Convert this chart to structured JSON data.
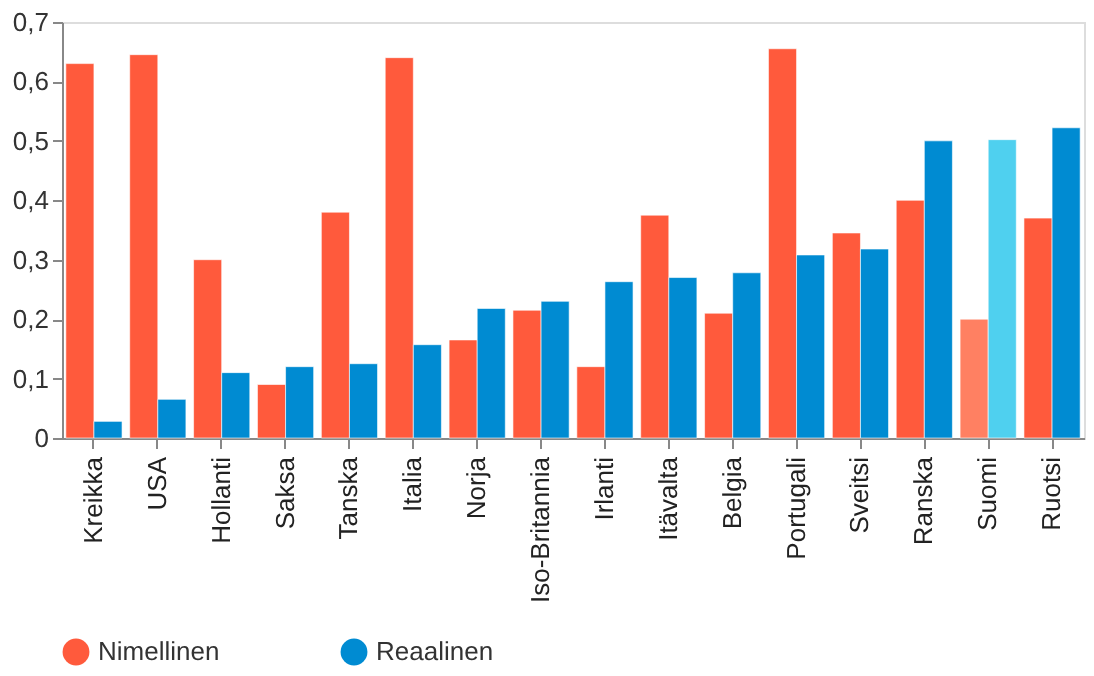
{
  "chart_data": {
    "type": "bar",
    "categories": [
      "Kreikka",
      "USA",
      "Hollanti",
      "Saksa",
      "Tanska",
      "Italia",
      "Norja",
      "Iso-Britannia",
      "Irlanti",
      "Itävalta",
      "Belgia",
      "Portugali",
      "Sveitsi",
      "Ranska",
      "Suomi",
      "Ruotsi"
    ],
    "series": [
      {
        "name": "Nimellinen",
        "color": "#ff5a3c",
        "colors": [
          "#ff5a3c",
          "#ff5a3c",
          "#ff5a3c",
          "#ff5a3c",
          "#ff5a3c",
          "#ff5a3c",
          "#ff5a3c",
          "#ff5a3c",
          "#ff5a3c",
          "#ff5a3c",
          "#ff5a3c",
          "#ff5a3c",
          "#ff5a3c",
          "#ff5a3c",
          "#ff8062",
          "#ff5a3c"
        ],
        "values": [
          0.63,
          0.645,
          0.3,
          0.09,
          0.38,
          0.64,
          0.165,
          0.215,
          0.12,
          0.375,
          0.21,
          0.655,
          0.345,
          0.4,
          0.2,
          0.37
        ]
      },
      {
        "name": "Reaalinen",
        "color": "#008bd2",
        "colors": [
          "#008bd2",
          "#008bd2",
          "#008bd2",
          "#008bd2",
          "#008bd2",
          "#008bd2",
          "#008bd2",
          "#008bd2",
          "#008bd2",
          "#008bd2",
          "#008bd2",
          "#008bd2",
          "#008bd2",
          "#008bd2",
          "#4fd0ef",
          "#008bd2"
        ],
        "values": [
          0.028,
          0.065,
          0.11,
          0.12,
          0.125,
          0.157,
          0.218,
          0.23,
          0.263,
          0.27,
          0.278,
          0.308,
          0.318,
          0.5,
          0.502,
          0.522
        ]
      }
    ],
    "ylim": [
      0,
      0.7
    ],
    "yticks": [
      0,
      {
        "value": 0.1,
        "label": "0,1"
      },
      {
        "value": 0.2,
        "label": "0,2"
      },
      {
        "value": 0.3,
        "label": "0,3"
      },
      {
        "value": 0.4,
        "label": "0,4"
      },
      {
        "value": 0.5,
        "label": "0,5"
      },
      {
        "value": 0.6,
        "label": "0,6"
      },
      {
        "value": 0.7,
        "label": "0,7"
      }
    ],
    "grid": false,
    "legend": "bottom"
  }
}
